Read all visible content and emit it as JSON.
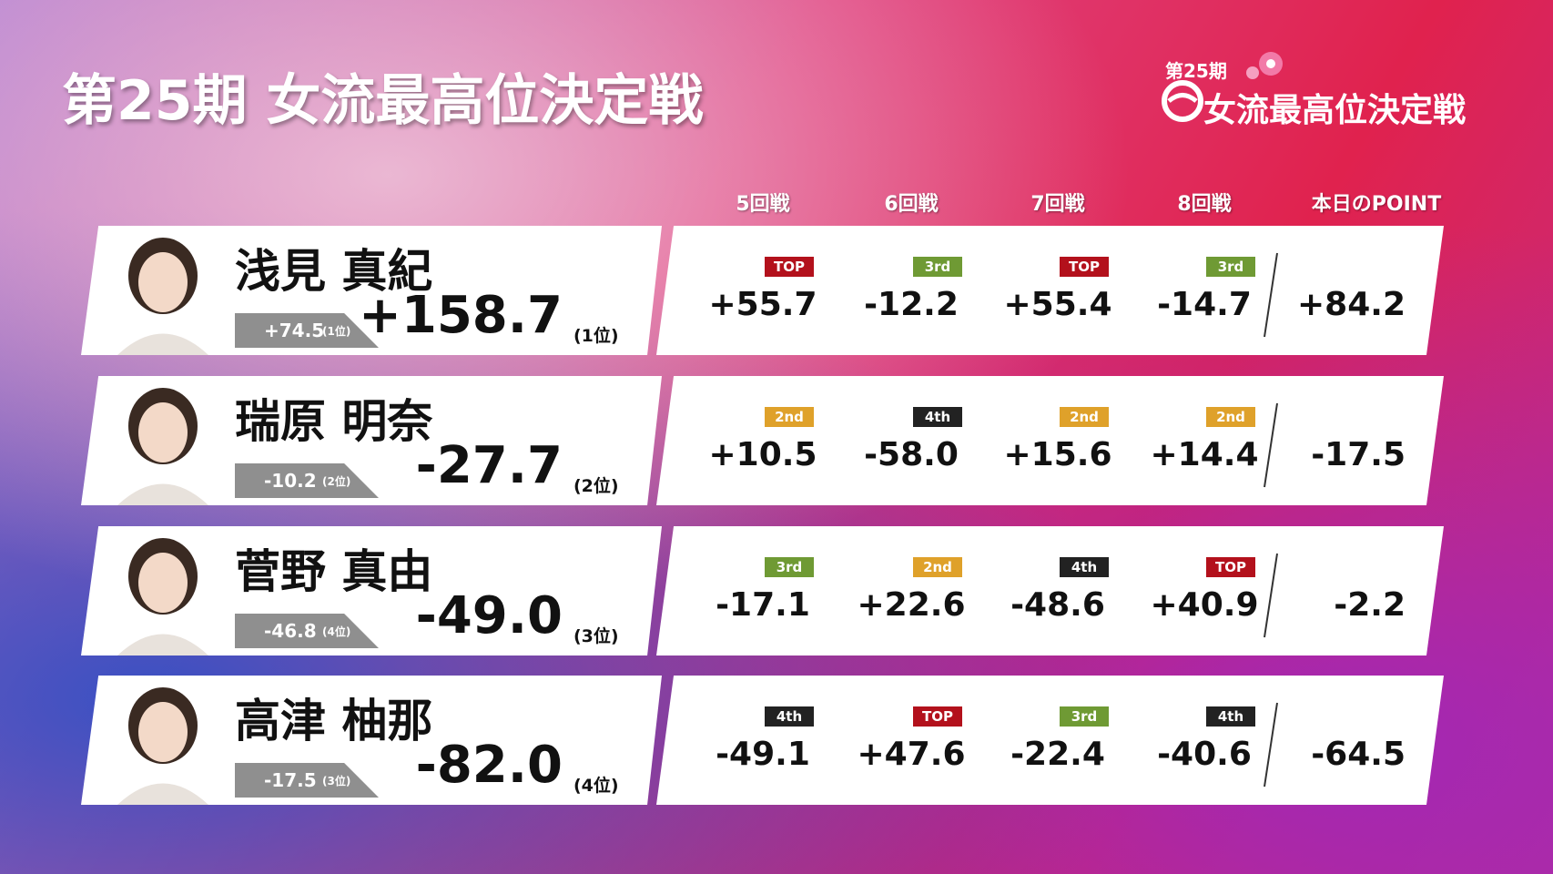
{
  "header": {
    "title": "第25期 女流最高位決定戦"
  },
  "logo": {
    "edition": "第25期",
    "name": "女流最高位決定戦"
  },
  "columns": [
    "5回戦",
    "6回戦",
    "7回戦",
    "8回戦",
    "本日のPOINT"
  ],
  "badge_colors": {
    "TOP": "#b3111c",
    "2nd": "#dfa12a",
    "3rd": "#6f9a34",
    "4th": "#222222"
  },
  "players": [
    {
      "name": "浅見 真紀",
      "previous": "+74.5",
      "previous_rank": "(1位)",
      "total": "+158.7",
      "rank": "(1位)",
      "games": [
        {
          "place": "TOP",
          "score": "+55.7"
        },
        {
          "place": "3rd",
          "score": "-12.2"
        },
        {
          "place": "TOP",
          "score": "+55.4"
        },
        {
          "place": "3rd",
          "score": "-14.7"
        }
      ],
      "today": "+84.2"
    },
    {
      "name": "瑞原 明奈",
      "previous": "-10.2",
      "previous_rank": "(2位)",
      "total": "-27.7",
      "rank": "(2位)",
      "games": [
        {
          "place": "2nd",
          "score": "+10.5"
        },
        {
          "place": "4th",
          "score": "-58.0"
        },
        {
          "place": "2nd",
          "score": "+15.6"
        },
        {
          "place": "2nd",
          "score": "+14.4"
        }
      ],
      "today": "-17.5"
    },
    {
      "name": "菅野 真由",
      "previous": "-46.8",
      "previous_rank": "(4位)",
      "total": "-49.0",
      "rank": "(3位)",
      "games": [
        {
          "place": "3rd",
          "score": "-17.1"
        },
        {
          "place": "2nd",
          "score": "+22.6"
        },
        {
          "place": "4th",
          "score": "-48.6"
        },
        {
          "place": "TOP",
          "score": "+40.9"
        }
      ],
      "today": "-2.2"
    },
    {
      "name": "高津 柚那",
      "previous": "-17.5",
      "previous_rank": "(3位)",
      "total": "-82.0",
      "rank": "(4位)",
      "games": [
        {
          "place": "4th",
          "score": "-49.1"
        },
        {
          "place": "TOP",
          "score": "+47.6"
        },
        {
          "place": "3rd",
          "score": "-22.4"
        },
        {
          "place": "4th",
          "score": "-40.6"
        }
      ],
      "today": "-64.5"
    }
  ]
}
